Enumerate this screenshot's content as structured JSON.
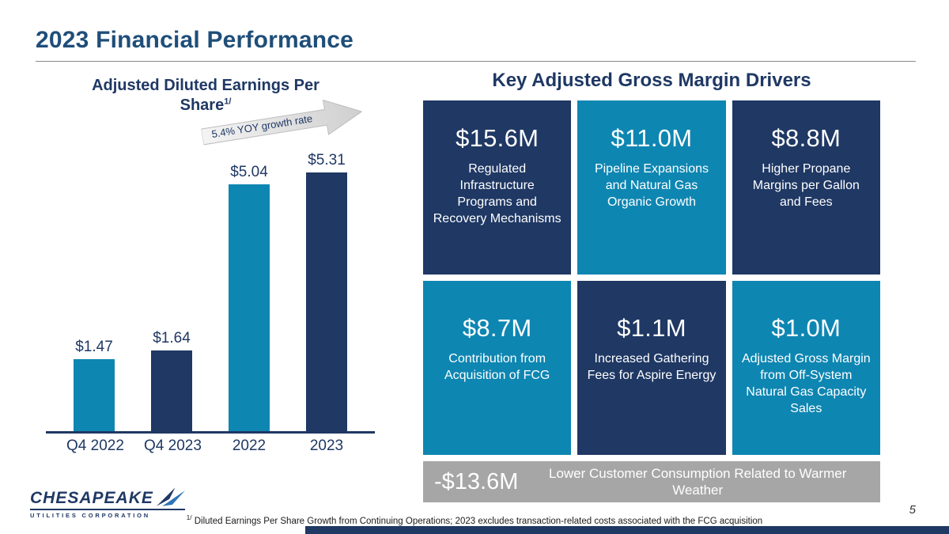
{
  "slide": {
    "title": "2023 Financial Performance",
    "page_number": "5",
    "footnote_sup": "1/",
    "footnote": "Diluted Earnings Per Share Growth from Continuing Operations; 2023 excludes transaction-related costs associated with the FCG acquisition"
  },
  "logo": {
    "line1": "CHESAPEAKE",
    "line2": "UTILITIES CORPORATION"
  },
  "chart": {
    "title_line1": "Adjusted Diluted Earnings Per",
    "title_line2": "Share",
    "title_sup": "1/",
    "growth_label": "5.4% YOY growth rate"
  },
  "chart_data": {
    "type": "bar",
    "title": "Adjusted Diluted Earnings Per Share",
    "categories": [
      "Q4 2022",
      "Q4 2023",
      "2022",
      "2023"
    ],
    "values": [
      1.47,
      1.64,
      5.04,
      5.31
    ],
    "value_labels": [
      "$1.47",
      "$1.64",
      "$5.04",
      "$5.31"
    ],
    "bar_colors": [
      "#0e86b2",
      "#1f3864",
      "#0e86b2",
      "#1f3864"
    ],
    "annotation": "5.4% YOY growth rate",
    "xlabel": "",
    "ylabel": "",
    "ylim": [
      0,
      5.6
    ],
    "grid": false,
    "legend": "none"
  },
  "drivers": {
    "title": "Key Adjusted Gross Margin Drivers",
    "boxes": [
      {
        "amount": "$15.6M",
        "label": "Regulated Infrastructure Programs and Recovery Mechanisms",
        "color": "navy"
      },
      {
        "amount": "$11.0M",
        "label": "Pipeline Expansions and Natural Gas Organic Growth",
        "color": "teal"
      },
      {
        "amount": "$8.8M",
        "label": "Higher Propane Margins per Gallon and Fees",
        "color": "navy"
      },
      {
        "amount": "$8.7M",
        "label": "Contribution from Acquisition of FCG",
        "color": "teal"
      },
      {
        "amount": "$1.1M",
        "label": "Increased Gathering Fees for Aspire Energy",
        "color": "navy"
      },
      {
        "amount": "$1.0M",
        "label": "Adjusted Gross Margin from Off-System Natural Gas Capacity Sales",
        "color": "teal"
      }
    ],
    "negative": {
      "amount": "-$13.6M",
      "label": "Lower Customer Consumption Related to Warmer Weather"
    }
  },
  "colors": {
    "navy": "#1f3864",
    "teal": "#0e86b2",
    "gray": "#a6a6a6",
    "title_blue": "#1f4e79"
  }
}
